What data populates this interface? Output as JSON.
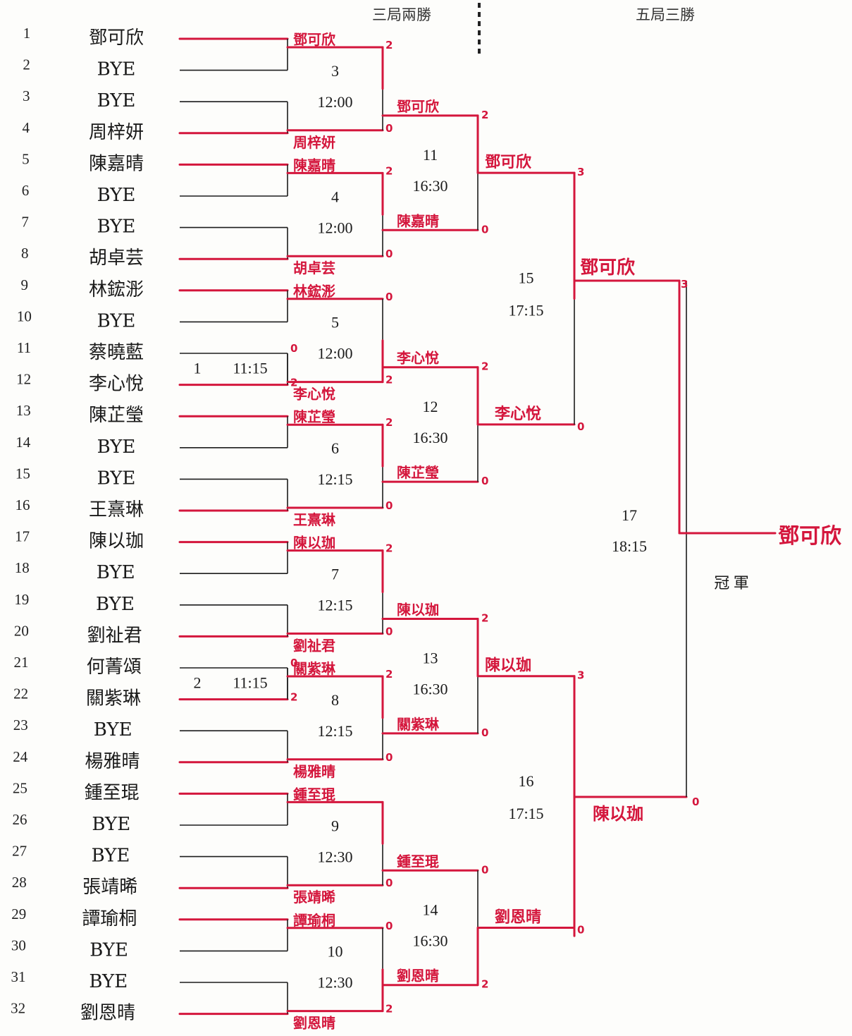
{
  "headers": {
    "best_of_three": "三局兩勝",
    "best_of_five": "五局三勝",
    "champion_label": "冠 軍"
  },
  "entries": [
    {
      "seed": "1",
      "name": "鄧可欣"
    },
    {
      "seed": "2",
      "name": "BYE"
    },
    {
      "seed": "3",
      "name": "BYE"
    },
    {
      "seed": "4",
      "name": "周梓妍"
    },
    {
      "seed": "5",
      "name": "陳嘉晴"
    },
    {
      "seed": "6",
      "name": "BYE"
    },
    {
      "seed": "7",
      "name": "BYE"
    },
    {
      "seed": "8",
      "name": "胡卓芸"
    },
    {
      "seed": "9",
      "name": "林鋐浵"
    },
    {
      "seed": "10",
      "name": "BYE"
    },
    {
      "seed": "11",
      "name": "蔡曉藍"
    },
    {
      "seed": "12",
      "name": "李心悅"
    },
    {
      "seed": "13",
      "name": "陳芷瑩"
    },
    {
      "seed": "14",
      "name": "BYE"
    },
    {
      "seed": "15",
      "name": "BYE"
    },
    {
      "seed": "16",
      "name": "王熹琳"
    },
    {
      "seed": "17",
      "name": "陳以珈"
    },
    {
      "seed": "18",
      "name": "BYE"
    },
    {
      "seed": "19",
      "name": "BYE"
    },
    {
      "seed": "20",
      "name": "劉祉君"
    },
    {
      "seed": "21",
      "name": "何菁頌"
    },
    {
      "seed": "22",
      "name": "關紫琳"
    },
    {
      "seed": "23",
      "name": "BYE"
    },
    {
      "seed": "24",
      "name": "楊雅晴"
    },
    {
      "seed": "25",
      "name": "鍾至琨"
    },
    {
      "seed": "26",
      "name": "BYE"
    },
    {
      "seed": "27",
      "name": "BYE"
    },
    {
      "seed": "28",
      "name": "張靖晞"
    },
    {
      "seed": "29",
      "name": "譚瑜桐"
    },
    {
      "seed": "30",
      "name": "BYE"
    },
    {
      "seed": "31",
      "name": "BYE"
    },
    {
      "seed": "32",
      "name": "劉恩晴"
    }
  ],
  "prelim_matches": [
    {
      "no": "1",
      "time": "11:15",
      "winner": "李心悅",
      "scores": [
        "0",
        "2"
      ]
    },
    {
      "no": "2",
      "time": "11:15",
      "winner": "關紫琳",
      "scores": [
        "0",
        "2"
      ]
    }
  ],
  "round1": [
    {
      "no": "3",
      "time": "12:00",
      "top": "鄧可欣",
      "bottom": "周梓妍",
      "scores": [
        "2",
        "0"
      ]
    },
    {
      "no": "4",
      "time": "12:00",
      "top": "陳嘉晴",
      "bottom": "胡卓芸",
      "scores": [
        "2",
        "0"
      ]
    },
    {
      "no": "5",
      "time": "12:00",
      "top": "林鋐浵",
      "bottom": "李心悅",
      "scores": [
        "0",
        "2"
      ]
    },
    {
      "no": "6",
      "time": "12:15",
      "top": "陳芷瑩",
      "bottom": "王熹琳",
      "scores": [
        "2",
        "0"
      ]
    },
    {
      "no": "7",
      "time": "12:15",
      "top": "陳以珈",
      "bottom": "劉祉君",
      "scores": [
        "2",
        "0"
      ]
    },
    {
      "no": "8",
      "time": "12:15",
      "top": "關紫琳",
      "bottom": "楊雅晴",
      "scores": [
        "2",
        "0"
      ]
    },
    {
      "no": "9",
      "time": "12:30",
      "top": "鍾至琨",
      "bottom": "張靖晞",
      "scores": [
        "",
        "0"
      ]
    },
    {
      "no": "10",
      "time": "12:30",
      "top": "譚瑜桐",
      "bottom": "劉恩晴",
      "scores": [
        "0",
        "2"
      ]
    }
  ],
  "round2": [
    {
      "no": "11",
      "time": "16:30",
      "top": "鄧可欣",
      "bottom": "陳嘉晴",
      "scores": [
        "2",
        "0"
      ]
    },
    {
      "no": "12",
      "time": "16:30",
      "top": "李心悅",
      "bottom": "陳芷瑩",
      "scores": [
        "2",
        "0"
      ]
    },
    {
      "no": "13",
      "time": "16:30",
      "top": "陳以珈",
      "bottom": "關紫琳",
      "scores": [
        "2",
        "0"
      ]
    },
    {
      "no": "14",
      "time": "16:30",
      "top": "鍾至琨",
      "bottom": "劉恩晴",
      "scores": [
        "0",
        "2"
      ]
    }
  ],
  "semis": [
    {
      "no": "15",
      "time": "17:15",
      "top": "鄧可欣",
      "bottom": "李心悅",
      "scores": [
        "3",
        "0"
      ]
    },
    {
      "no": "16",
      "time": "17:15",
      "top": "陳以珈",
      "bottom": "劉恩晴",
      "scores": [
        "3",
        "0"
      ]
    }
  ],
  "final": {
    "no": "17",
    "time": "18:15",
    "top": "鄧可欣",
    "bottom": "陳以珈",
    "scores": [
      "3",
      "0"
    ]
  },
  "champion": "鄧可欣"
}
